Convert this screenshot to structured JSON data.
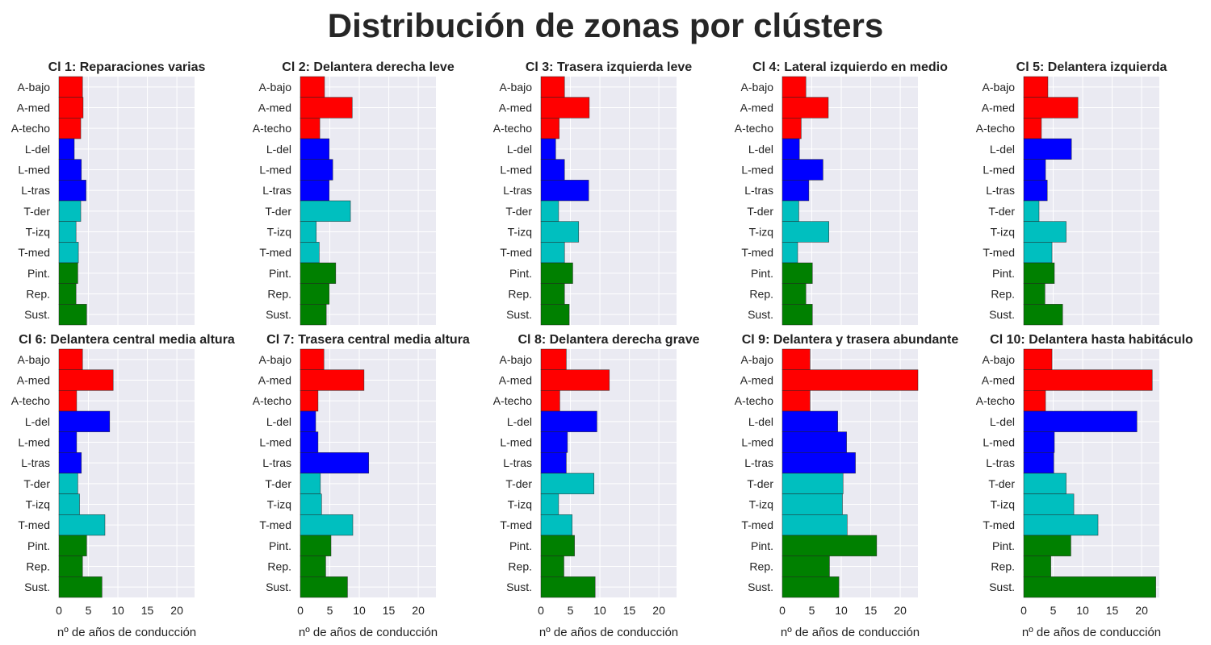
{
  "title": "Distribución de zonas por clústers",
  "colors": {
    "background": "#eaeaf2",
    "grid": "#ffffff",
    "edge": "#222222",
    "A": "#ff0000",
    "L": "#0000ff",
    "T": "#00bfbf",
    "P": "#008000"
  },
  "chart_data": [
    {
      "type": "bar",
      "orientation": "horizontal",
      "title": "Cl 1: Reparaciones varias",
      "categories": [
        "A-bajo",
        "A-med",
        "A-techo",
        "L-del",
        "L-med",
        "L-tras",
        "T-der",
        "T-izq",
        "T-med",
        "Pint.",
        "Rep.",
        "Sust."
      ],
      "category_groups": [
        "A",
        "A",
        "A",
        "L",
        "L",
        "L",
        "T",
        "T",
        "T",
        "P",
        "P",
        "P"
      ],
      "values": [
        4.0,
        4.1,
        3.7,
        2.6,
        3.8,
        4.6,
        3.7,
        2.9,
        3.3,
        3.2,
        2.9,
        4.7
      ],
      "xlabel": "",
      "xlim": [
        0,
        23
      ],
      "xticks": [
        0,
        5,
        10,
        15,
        20
      ],
      "grid": true
    },
    {
      "type": "bar",
      "orientation": "horizontal",
      "title": "Cl 2: Delantera derecha leve",
      "categories": [
        "A-bajo",
        "A-med",
        "A-techo",
        "L-del",
        "L-med",
        "L-tras",
        "T-der",
        "T-izq",
        "T-med",
        "Pint.",
        "Rep.",
        "Sust."
      ],
      "category_groups": [
        "A",
        "A",
        "A",
        "L",
        "L",
        "L",
        "T",
        "T",
        "T",
        "P",
        "P",
        "P"
      ],
      "values": [
        4.1,
        8.8,
        3.3,
        4.9,
        5.5,
        4.9,
        8.5,
        2.7,
        3.2,
        6.0,
        4.9,
        4.4
      ],
      "xlabel": "",
      "xlim": [
        0,
        23
      ],
      "xticks": [
        0,
        5,
        10,
        15,
        20
      ],
      "grid": true
    },
    {
      "type": "bar",
      "orientation": "horizontal",
      "title": "Cl 3: Trasera izquierda leve",
      "categories": [
        "A-bajo",
        "A-med",
        "A-techo",
        "L-del",
        "L-med",
        "L-tras",
        "T-der",
        "T-izq",
        "T-med",
        "Pint.",
        "Rep.",
        "Sust."
      ],
      "category_groups": [
        "A",
        "A",
        "A",
        "L",
        "L",
        "L",
        "T",
        "T",
        "T",
        "P",
        "P",
        "P"
      ],
      "values": [
        4.0,
        8.2,
        3.1,
        2.5,
        4.0,
        8.1,
        3.0,
        6.4,
        4.0,
        5.4,
        4.0,
        4.8
      ],
      "xlabel": "",
      "xlim": [
        0,
        23
      ],
      "xticks": [
        0,
        5,
        10,
        15,
        20
      ],
      "grid": true
    },
    {
      "type": "bar",
      "orientation": "horizontal",
      "title": "Cl 4: Lateral izquierdo en medio",
      "categories": [
        "A-bajo",
        "A-med",
        "A-techo",
        "L-del",
        "L-med",
        "L-tras",
        "T-der",
        "T-izq",
        "T-med",
        "Pint.",
        "Rep.",
        "Sust."
      ],
      "category_groups": [
        "A",
        "A",
        "A",
        "L",
        "L",
        "L",
        "T",
        "T",
        "T",
        "P",
        "P",
        "P"
      ],
      "values": [
        4.0,
        7.8,
        3.2,
        2.9,
        6.9,
        4.5,
        2.8,
        7.9,
        2.6,
        5.1,
        4.0,
        5.1
      ],
      "xlabel": "",
      "xlim": [
        0,
        23
      ],
      "xticks": [
        0,
        5,
        10,
        15,
        20
      ],
      "grid": true
    },
    {
      "type": "bar",
      "orientation": "horizontal",
      "title": "Cl 5: Delantera izquierda",
      "categories": [
        "A-bajo",
        "A-med",
        "A-techo",
        "L-del",
        "L-med",
        "L-tras",
        "T-der",
        "T-izq",
        "T-med",
        "Pint.",
        "Rep.",
        "Sust."
      ],
      "category_groups": [
        "A",
        "A",
        "A",
        "L",
        "L",
        "L",
        "T",
        "T",
        "T",
        "P",
        "P",
        "P"
      ],
      "values": [
        4.1,
        9.2,
        3.0,
        8.1,
        3.7,
        4.0,
        2.6,
        7.2,
        4.8,
        5.2,
        3.6,
        6.6
      ],
      "xlabel": "",
      "xlim": [
        0,
        23
      ],
      "xticks": [
        0,
        5,
        10,
        15,
        20
      ],
      "grid": true
    },
    {
      "type": "bar",
      "orientation": "horizontal",
      "title": "Cl 6: Delantera central media altura",
      "categories": [
        "A-bajo",
        "A-med",
        "A-techo",
        "L-del",
        "L-med",
        "L-tras",
        "T-der",
        "T-izq",
        "T-med",
        "Pint.",
        "Rep.",
        "Sust."
      ],
      "category_groups": [
        "A",
        "A",
        "A",
        "L",
        "L",
        "L",
        "T",
        "T",
        "T",
        "P",
        "P",
        "P"
      ],
      "values": [
        4.0,
        9.2,
        3.0,
        8.6,
        3.0,
        3.8,
        3.2,
        3.5,
        7.8,
        4.7,
        4.0,
        7.3
      ],
      "xlabel": "nº de años de conducción",
      "xlim": [
        0,
        23
      ],
      "xticks": [
        0,
        5,
        10,
        15,
        20
      ],
      "grid": true
    },
    {
      "type": "bar",
      "orientation": "horizontal",
      "title": "Cl 7: Trasera central media altura",
      "categories": [
        "A-bajo",
        "A-med",
        "A-techo",
        "L-del",
        "L-med",
        "L-tras",
        "T-der",
        "T-izq",
        "T-med",
        "Pint.",
        "Rep.",
        "Sust."
      ],
      "category_groups": [
        "A",
        "A",
        "A",
        "L",
        "L",
        "L",
        "T",
        "T",
        "T",
        "P",
        "P",
        "P"
      ],
      "values": [
        4.0,
        10.8,
        3.0,
        2.6,
        3.0,
        11.6,
        3.4,
        3.6,
        8.9,
        5.2,
        4.3,
        8.0
      ],
      "xlabel": "nº de años de conducción",
      "xlim": [
        0,
        23
      ],
      "xticks": [
        0,
        5,
        10,
        15,
        20
      ],
      "grid": true
    },
    {
      "type": "bar",
      "orientation": "horizontal",
      "title": "Cl 8: Delantera derecha grave",
      "categories": [
        "A-bajo",
        "A-med",
        "A-techo",
        "L-del",
        "L-med",
        "L-tras",
        "T-der",
        "T-izq",
        "T-med",
        "Pint.",
        "Rep.",
        "Sust."
      ],
      "category_groups": [
        "A",
        "A",
        "A",
        "L",
        "L",
        "L",
        "T",
        "T",
        "T",
        "P",
        "P",
        "P"
      ],
      "values": [
        4.3,
        11.6,
        3.2,
        9.5,
        4.5,
        4.3,
        9.0,
        3.0,
        5.3,
        5.7,
        3.9,
        9.2
      ],
      "xlabel": "nº de años de conducción",
      "xlim": [
        0,
        23
      ],
      "xticks": [
        0,
        5,
        10,
        15,
        20
      ],
      "grid": true
    },
    {
      "type": "bar",
      "orientation": "horizontal",
      "title": "Cl 9: Delantera y trasera abundante",
      "categories": [
        "A-bajo",
        "A-med",
        "A-techo",
        "L-del",
        "L-med",
        "L-tras",
        "T-der",
        "T-izq",
        "T-med",
        "Pint.",
        "Rep.",
        "Sust."
      ],
      "category_groups": [
        "A",
        "A",
        "A",
        "L",
        "L",
        "L",
        "T",
        "T",
        "T",
        "P",
        "P",
        "P"
      ],
      "values": [
        4.7,
        23.0,
        4.7,
        9.4,
        10.9,
        12.4,
        10.3,
        10.2,
        11.0,
        16.0,
        8.0,
        9.6
      ],
      "xlabel": "nº de años de conducción",
      "xlim": [
        0,
        23
      ],
      "xticks": [
        0,
        5,
        10,
        15,
        20
      ],
      "grid": true
    },
    {
      "type": "bar",
      "orientation": "horizontal",
      "title": "Cl 10: Delantera hasta habitáculo",
      "categories": [
        "A-bajo",
        "A-med",
        "A-techo",
        "L-del",
        "L-med",
        "L-tras",
        "T-der",
        "T-izq",
        "T-med",
        "Pint.",
        "Rep.",
        "Sust."
      ],
      "category_groups": [
        "A",
        "A",
        "A",
        "L",
        "L",
        "L",
        "T",
        "T",
        "T",
        "P",
        "P",
        "P"
      ],
      "values": [
        4.8,
        21.8,
        3.7,
        19.2,
        5.2,
        5.1,
        7.2,
        8.5,
        12.6,
        8.0,
        4.6,
        22.4
      ],
      "xlabel": "nº de años de conducción",
      "xlim": [
        0,
        23
      ],
      "xticks": [
        0,
        5,
        10,
        15,
        20
      ],
      "grid": true
    }
  ]
}
